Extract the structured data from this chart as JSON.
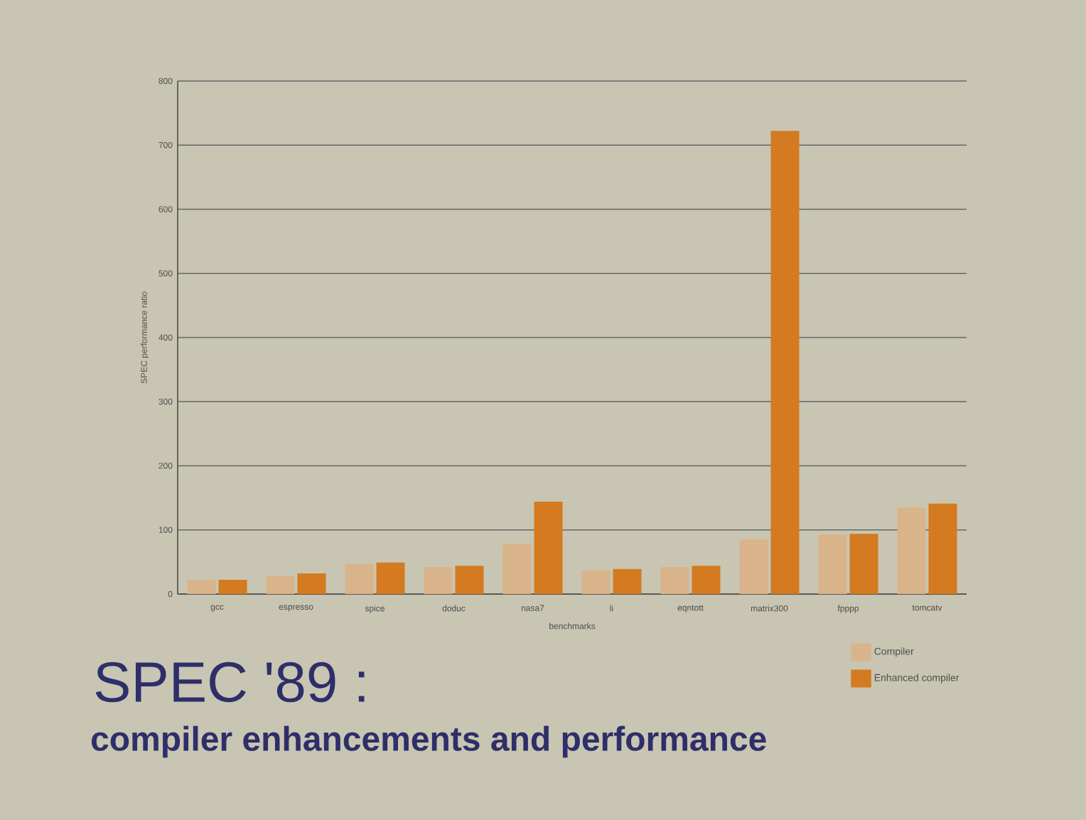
{
  "chart_data": {
    "type": "bar",
    "title": "SPEC '89 :",
    "subtitle": "compiler enhancements and performance",
    "xlabel": "benchmarks",
    "ylabel": "SPEC performance ratio",
    "categories": [
      "gcc",
      "espresso",
      "spice",
      "doduc",
      "nasa7",
      "li",
      "eqntott",
      "matrix300",
      "fpppp",
      "tomcatv"
    ],
    "series": [
      {
        "name": "Compiler",
        "color": "#d9b48a",
        "values": [
          22,
          28,
          47,
          42,
          78,
          37,
          42,
          85,
          93,
          135
        ]
      },
      {
        "name": "Enhanced compiler",
        "color": "#d47a20",
        "values": [
          22,
          32,
          49,
          44,
          144,
          39,
          44,
          722,
          94,
          141
        ]
      }
    ],
    "ylim": [
      0,
      800
    ],
    "yticks": [
      0,
      100,
      200,
      300,
      400,
      500,
      600,
      700,
      800
    ],
    "grid": "y",
    "legend": "bottom right"
  }
}
